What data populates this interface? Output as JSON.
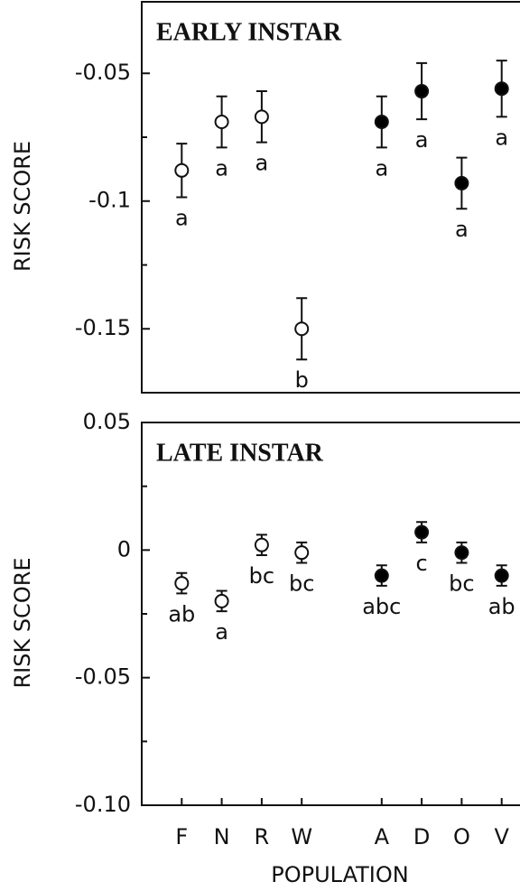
{
  "chart_data": [
    {
      "type": "scatter",
      "title": "EARLY INSTAR",
      "ylabel": "RISK SCORE",
      "xlim": [
        0,
        10
      ],
      "ylim": [
        -0.175,
        -0.022
      ],
      "yticks": [
        -0.05,
        -0.1,
        -0.15
      ],
      "minor_yticks": [
        -0.075,
        -0.125
      ],
      "series": [
        {
          "marker_fill": "#ffffff",
          "x": [
            1,
            2,
            3,
            4
          ],
          "values": [
            -0.088,
            -0.069,
            -0.067,
            -0.15
          ],
          "errors": [
            0.0105,
            0.01,
            0.01,
            0.012
          ],
          "labels": [
            "a",
            "a",
            "a",
            "b"
          ]
        },
        {
          "marker_fill": "#000000",
          "x": [
            6,
            7,
            8,
            9
          ],
          "values": [
            -0.069,
            -0.057,
            -0.093,
            -0.056
          ],
          "errors": [
            0.01,
            0.011,
            0.01,
            0.011
          ],
          "labels": [
            "a",
            "a",
            "a",
            "a"
          ]
        }
      ]
    },
    {
      "type": "scatter",
      "title": "LATE INSTAR",
      "ylabel": "RISK SCORE",
      "xlabel": "POPULATION",
      "xlim": [
        0,
        10
      ],
      "ylim": [
        -0.1,
        0.05
      ],
      "yticks": [
        {
          "value": 0.05,
          "label": "0.05"
        },
        0,
        {
          "value": -0.05,
          "label": "-0.05"
        },
        {
          "value": -0.1,
          "label": "-0.10"
        }
      ],
      "minor_yticks": [
        0.025,
        -0.025,
        -0.075
      ],
      "xticks": [
        {
          "value": 1,
          "label": "F"
        },
        {
          "value": 2,
          "label": "N"
        },
        {
          "value": 3,
          "label": "R"
        },
        {
          "value": 4,
          "label": "W"
        },
        {
          "value": 6,
          "label": "A"
        },
        {
          "value": 7,
          "label": "D"
        },
        {
          "value": 8,
          "label": "O"
        },
        {
          "value": 9,
          "label": "V"
        }
      ],
      "series": [
        {
          "marker_fill": "#ffffff",
          "x": [
            1,
            2,
            3,
            4
          ],
          "values": [
            -0.013,
            -0.02,
            0.002,
            -0.001
          ],
          "errors": [
            0.004,
            0.004,
            0.004,
            0.004
          ],
          "labels": [
            "ab",
            "a",
            "bc",
            "bc"
          ]
        },
        {
          "marker_fill": "#000000",
          "x": [
            6,
            7,
            8,
            9
          ],
          "values": [
            -0.01,
            0.007,
            -0.001,
            -0.01
          ],
          "errors": [
            0.004,
            0.004,
            0.004,
            0.004
          ],
          "labels": [
            "abc",
            "c",
            "bc",
            "ab"
          ]
        }
      ]
    }
  ]
}
